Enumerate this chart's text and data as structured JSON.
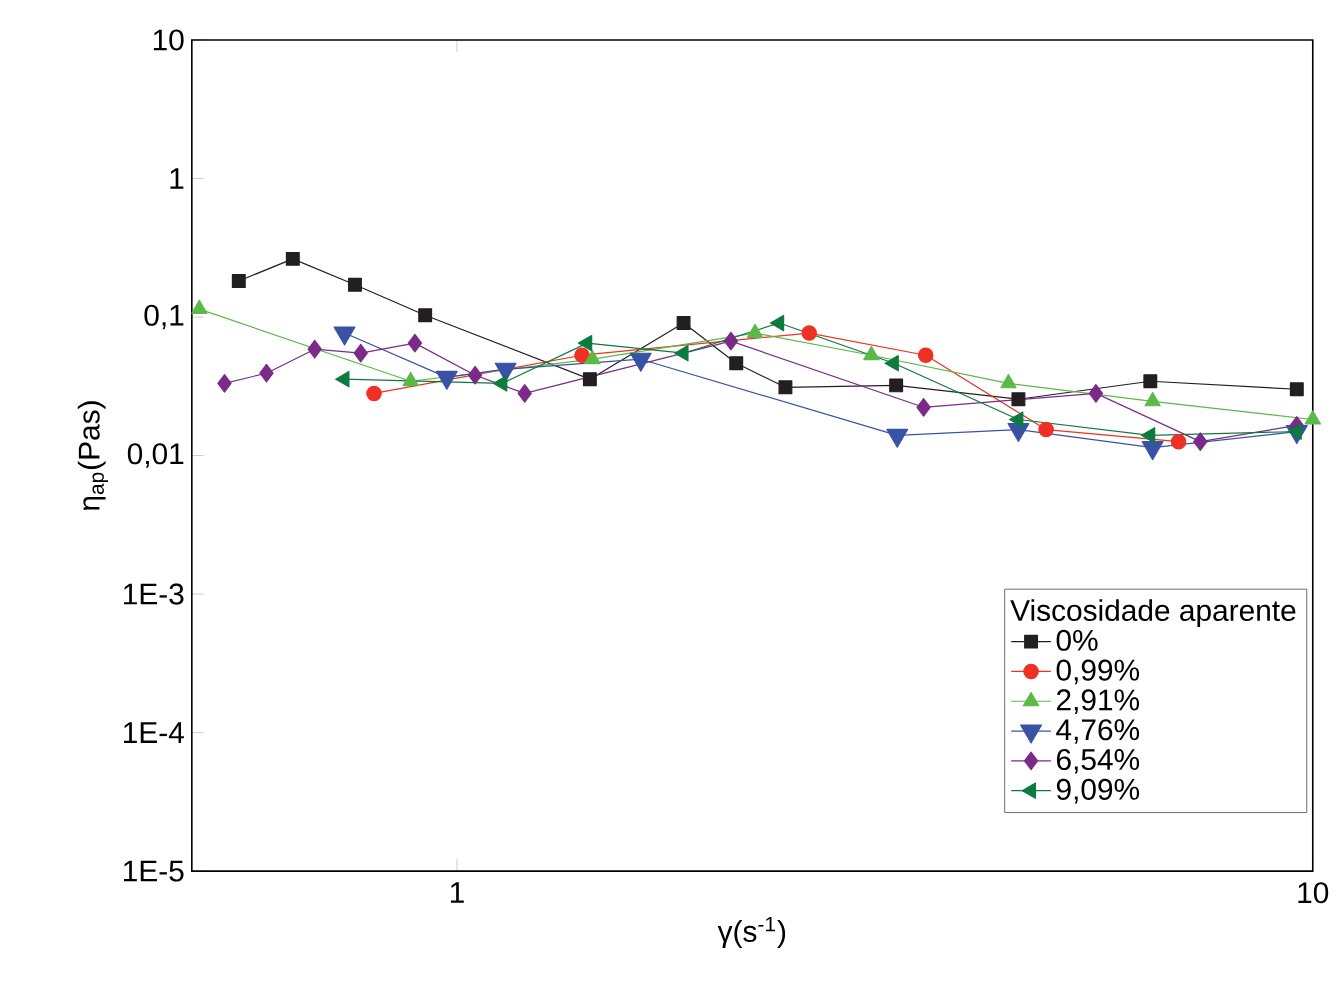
{
  "chart_data": {
    "type": "line",
    "xlabel": "γ(s$^{-1}$)",
    "ylabel": "η$_{ap}$(Pas)",
    "legend_title": "Viscosidade aparente",
    "legend": "right",
    "log": "xy",
    "grid": false,
    "line_style": "solid",
    "xlim": [
      0.49,
      10
    ],
    "xticks": [
      1,
      10
    ],
    "ylim": [
      1e-05,
      10
    ],
    "yticks": [
      {
        "value": 10,
        "label": "10"
      },
      {
        "value": 1,
        "label": "1"
      },
      {
        "value": 0.1,
        "label": "0,1"
      },
      {
        "value": 0.01,
        "label": "0,01"
      },
      {
        "value": 0.001,
        "label": "1E-3"
      },
      {
        "value": 0.0001,
        "label": "1E-4"
      },
      {
        "value": 1e-05,
        "label": "1E-5"
      }
    ],
    "series": [
      {
        "name": "0%",
        "color": "#231f20",
        "marker": "square",
        "x": [
          0.556,
          0.643,
          0.76,
          0.918,
          1.43,
          1.84,
          2.12,
          2.42,
          3.26,
          4.53,
          6.46,
          9.58
        ],
        "values": [
          0.182,
          0.263,
          0.171,
          0.103,
          0.0356,
          0.0905,
          0.0464,
          0.0311,
          0.0321,
          0.0255,
          0.0344,
          0.0301
        ]
      },
      {
        "name": "0,99%",
        "color": "#ee3124",
        "marker": "circle",
        "x": [
          0.8,
          1.4,
          2.58,
          3.53,
          4.88,
          6.97
        ],
        "values": [
          0.0281,
          0.053,
          0.0766,
          0.053,
          0.0154,
          0.0126
        ]
      },
      {
        "name": "2,91%",
        "color": "#5cb947",
        "marker": "triangle",
        "x": [
          0.5,
          0.883,
          1.44,
          2.23,
          3.05,
          4.41,
          6.5,
          10
        ],
        "values": [
          0.114,
          0.0344,
          0.0496,
          0.0766,
          0.053,
          0.0332,
          0.0246,
          0.0182
        ]
      },
      {
        "name": "4,76%",
        "color": "#3953a4",
        "marker": "triangle-down",
        "x": [
          0.739,
          0.973,
          1.14,
          1.64,
          3.27,
          4.53,
          6.5,
          9.58
        ],
        "values": [
          0.0766,
          0.0367,
          0.042,
          0.0496,
          0.014,
          0.0154,
          0.0114,
          0.0149
        ]
      },
      {
        "name": "6,54%",
        "color": "#7b2a8a",
        "marker": "diamond",
        "x": [
          0.535,
          0.599,
          0.682,
          0.772,
          0.893,
          1.05,
          1.2,
          2.09,
          3.51,
          5.58,
          7.39,
          9.58
        ],
        "values": [
          0.0332,
          0.0393,
          0.0586,
          0.0548,
          0.0648,
          0.038,
          0.0281,
          0.067,
          0.0223,
          0.0281,
          0.0126,
          0.0165
        ]
      },
      {
        "name": "9,09%",
        "color": "#0b7b3e",
        "marker": "triangle-left",
        "x": [
          0.739,
          1.13,
          1.42,
          1.84,
          2.38,
          3.24,
          4.53,
          6.46,
          9.58
        ],
        "values": [
          0.0356,
          0.0332,
          0.0648,
          0.0548,
          0.0905,
          0.0464,
          0.0182,
          0.014,
          0.0149
        ]
      }
    ]
  }
}
